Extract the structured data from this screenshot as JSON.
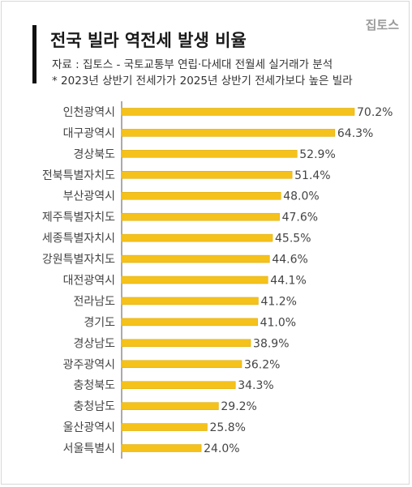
{
  "header": {
    "title": "전국 빌라 역전세 발생 비율",
    "brand": "집토스",
    "source": "자료 : 집토스 - 국토교통부 연립·다세대 전월세 실거래가 분석",
    "note": "* 2023년 상반기 전세가가 2025년 상반기 전세가보다 높은 빌라"
  },
  "colors": {
    "bar": "#f5c21b",
    "bar_edge": "#d9a600",
    "axis": "#555555"
  },
  "chart_data": {
    "type": "bar",
    "orientation": "horizontal",
    "title": "전국 빌라 역전세 발생 비율",
    "categories": [
      "인천광역시",
      "대구광역시",
      "경상북도",
      "전북특별자치도",
      "부산광역시",
      "제주특별자치도",
      "세종특별자치시",
      "강원특별자치도",
      "대전광역시",
      "전라남도",
      "경기도",
      "경상남도",
      "광주광역시",
      "충청북도",
      "충청남도",
      "울산광역시",
      "서울특별시"
    ],
    "values": [
      70.2,
      64.3,
      52.9,
      51.4,
      48.0,
      47.6,
      45.5,
      44.6,
      44.1,
      41.2,
      41.0,
      38.9,
      36.2,
      34.3,
      29.2,
      25.8,
      24.0
    ],
    "value_labels": [
      "70.2%",
      "64.3%",
      "52.9%",
      "51.4%",
      "48.0%",
      "47.6%",
      "45.5%",
      "44.6%",
      "44.1%",
      "41.2%",
      "41.0%",
      "38.9%",
      "36.2%",
      "34.3%",
      "29.2%",
      "25.8%",
      "24.0%"
    ],
    "xlim": [
      0,
      70.2
    ],
    "grid": false,
    "legend": "none"
  }
}
